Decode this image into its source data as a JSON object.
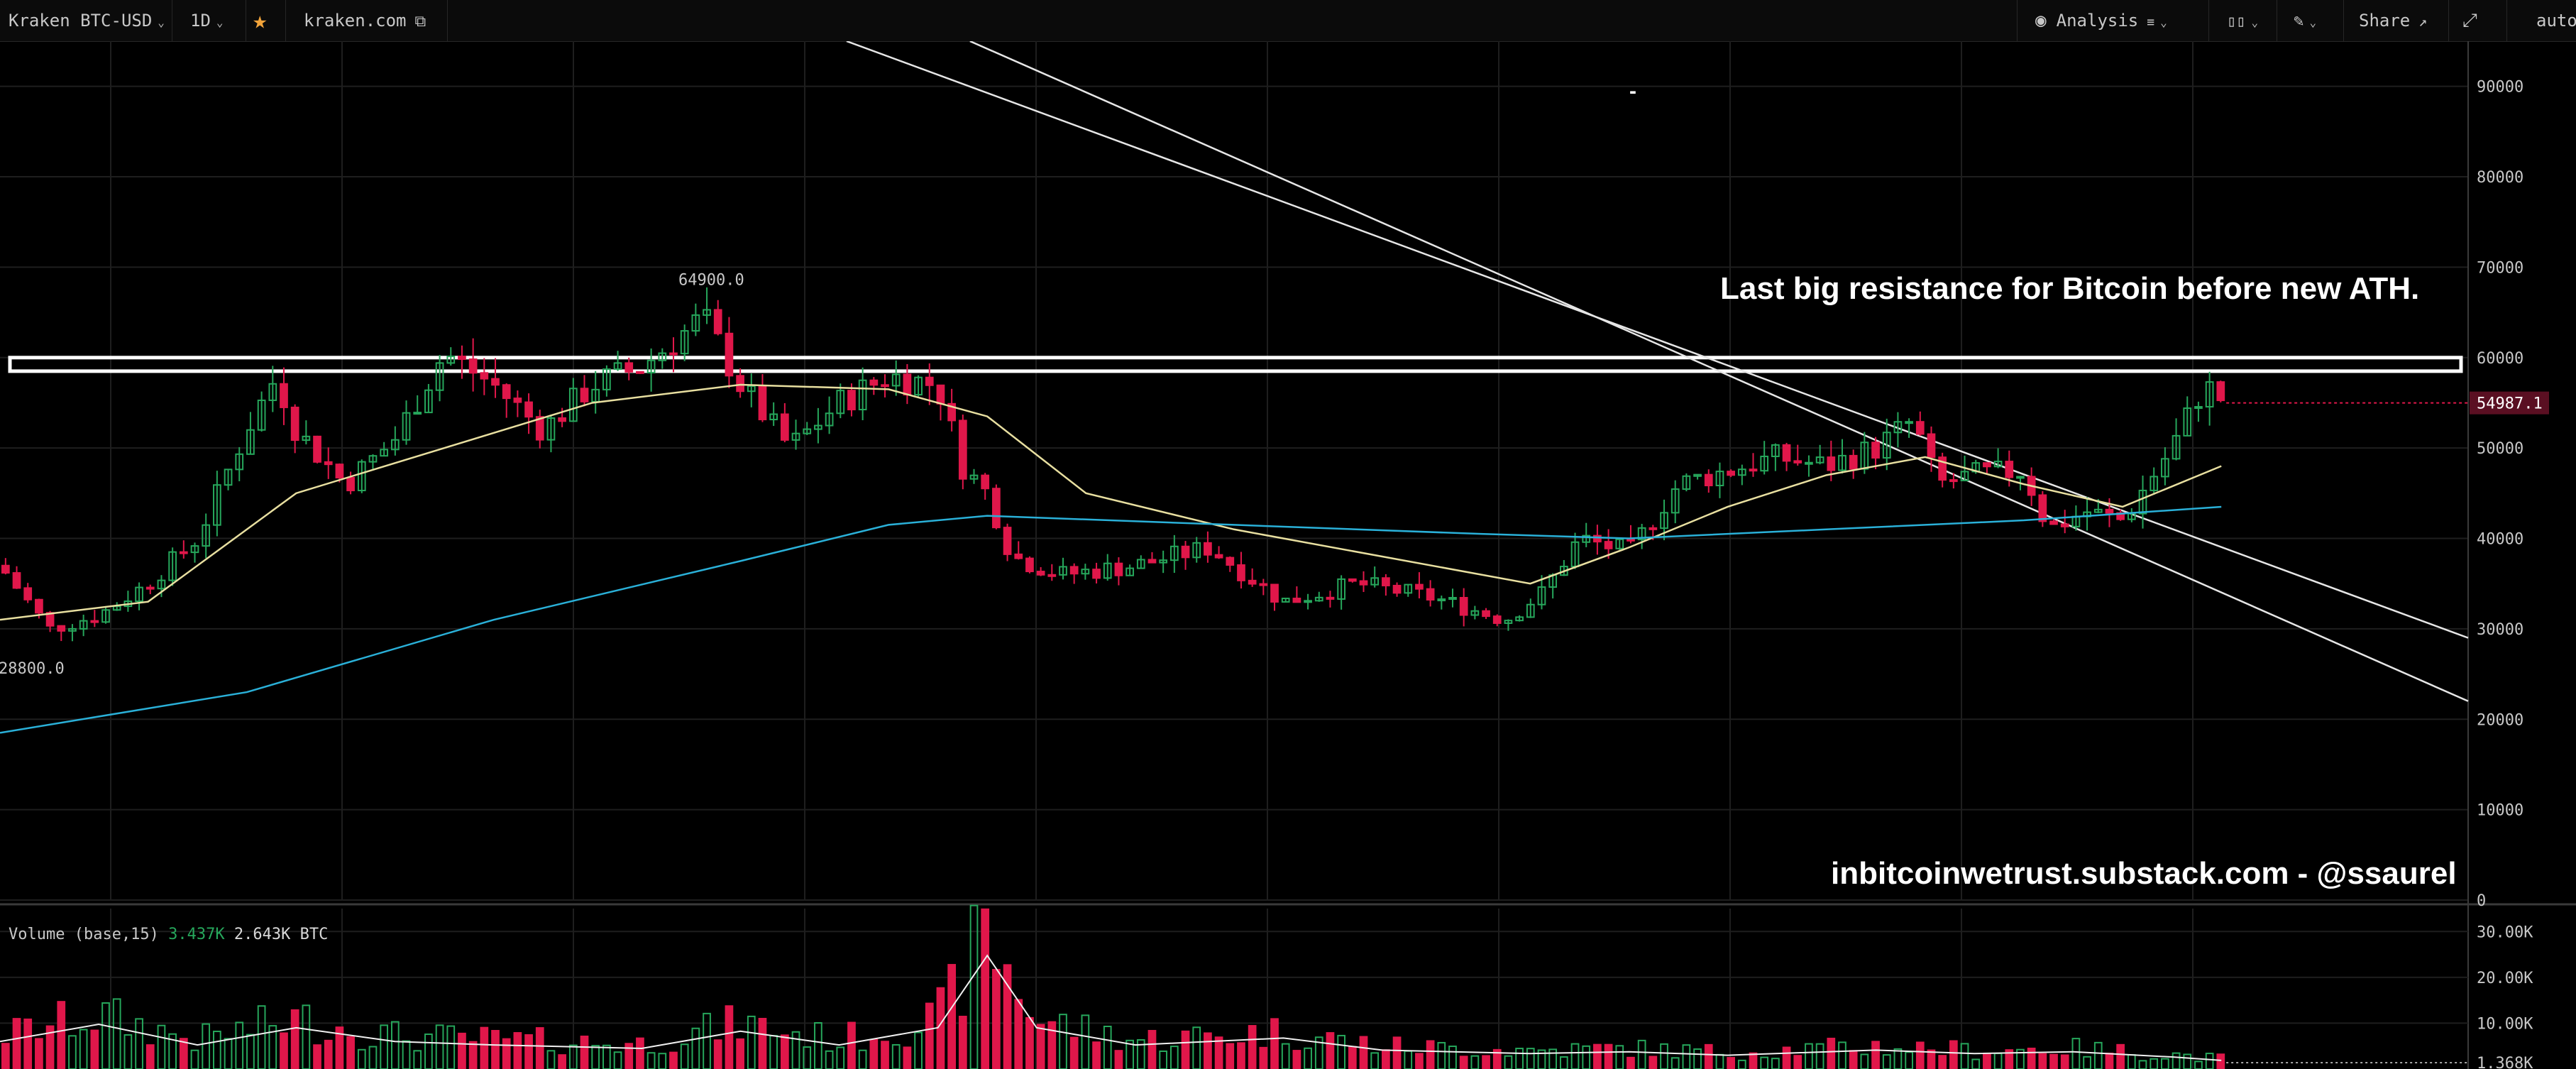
{
  "toolbar": {
    "symbol": "Kraken BTC-USD",
    "interval": "1D",
    "source": "kraken.com",
    "analysis": "Analysis",
    "share": "Share",
    "scale": "auto"
  },
  "annotations": {
    "title": "Last big resistance for Bitcoin before new ATH.",
    "credit": "inbitcoinwetrust.substack.com - @ssaurel",
    "dash": "-",
    "high_label": "64900.0",
    "low_label": "28800.0",
    "last_price_label": "54987.1"
  },
  "volume_legend": {
    "name": "Volume (base,15)",
    "value_green": "3.437K",
    "value_white": "2.643K BTC"
  },
  "colors": {
    "up": "#26a65b",
    "down": "#e0174a",
    "ma_fast": "#e8dfa0",
    "ma_slow": "#2ab0d8",
    "grid": "#1e1e1e",
    "text": "#c8c8c8"
  },
  "chart_data": {
    "type": "candlestick",
    "price_axis": {
      "min": 0,
      "max": 95000,
      "ticks": [
        "90000",
        "80000",
        "70000",
        "60000",
        "50000",
        "40000",
        "30000",
        "20000",
        "10000",
        "0"
      ]
    },
    "volume_axis": {
      "min": 0,
      "max": 35000,
      "ticks": [
        "30.00K",
        "20.00K",
        "10.00K"
      ],
      "last_label": "1.368K"
    },
    "resistance_zone": [
      58500,
      60000
    ],
    "trendlines": [
      {
        "from": [
          0.343,
          95000
        ],
        "to": [
          1.0,
          29000
        ]
      },
      {
        "from": [
          0.393,
          95000
        ],
        "to": [
          1.0,
          22000
        ]
      }
    ],
    "price_path": [
      [
        0.0,
        37000
      ],
      [
        0.02,
        30000
      ],
      [
        0.04,
        31500
      ],
      [
        0.06,
        35000
      ],
      [
        0.08,
        40000
      ],
      [
        0.1,
        52000
      ],
      [
        0.112,
        58000
      ],
      [
        0.12,
        52000
      ],
      [
        0.14,
        46000
      ],
      [
        0.16,
        51000
      ],
      [
        0.18,
        60500
      ],
      [
        0.2,
        57000
      ],
      [
        0.22,
        52000
      ],
      [
        0.24,
        57000
      ],
      [
        0.26,
        59000
      ],
      [
        0.285,
        64500
      ],
      [
        0.3,
        57000
      ],
      [
        0.32,
        50000
      ],
      [
        0.34,
        55000
      ],
      [
        0.36,
        58000
      ],
      [
        0.38,
        57000
      ],
      [
        0.39,
        48000
      ],
      [
        0.4,
        45000
      ],
      [
        0.41,
        38000
      ],
      [
        0.43,
        36000
      ],
      [
        0.46,
        37000
      ],
      [
        0.49,
        39000
      ],
      [
        0.52,
        33000
      ],
      [
        0.55,
        35000
      ],
      [
        0.58,
        33500
      ],
      [
        0.61,
        31000
      ],
      [
        0.625,
        34000
      ],
      [
        0.64,
        40000
      ],
      [
        0.66,
        38500
      ],
      [
        0.68,
        46000
      ],
      [
        0.7,
        47500
      ],
      [
        0.72,
        49000
      ],
      [
        0.74,
        48000
      ],
      [
        0.76,
        50000
      ],
      [
        0.775,
        53000
      ],
      [
        0.785,
        46000
      ],
      [
        0.8,
        47000
      ],
      [
        0.82,
        47500
      ],
      [
        0.83,
        41000
      ],
      [
        0.845,
        43000
      ],
      [
        0.86,
        42000
      ],
      [
        0.87,
        46000
      ],
      [
        0.88,
        50000
      ],
      [
        0.893,
        57000
      ],
      [
        0.902,
        55000
      ]
    ],
    "ma_fast": [
      [
        0.0,
        31000
      ],
      [
        0.06,
        33000
      ],
      [
        0.12,
        45000
      ],
      [
        0.18,
        50000
      ],
      [
        0.24,
        55000
      ],
      [
        0.3,
        57000
      ],
      [
        0.36,
        56500
      ],
      [
        0.4,
        53500
      ],
      [
        0.44,
        45000
      ],
      [
        0.5,
        41000
      ],
      [
        0.56,
        38000
      ],
      [
        0.62,
        35000
      ],
      [
        0.66,
        39000
      ],
      [
        0.7,
        43500
      ],
      [
        0.74,
        47000
      ],
      [
        0.78,
        49000
      ],
      [
        0.82,
        46000
      ],
      [
        0.86,
        43500
      ],
      [
        0.9,
        48000
      ]
    ],
    "ma_slow": [
      [
        0.0,
        18500
      ],
      [
        0.1,
        23000
      ],
      [
        0.2,
        31000
      ],
      [
        0.3,
        37500
      ],
      [
        0.36,
        41500
      ],
      [
        0.4,
        42500
      ],
      [
        0.5,
        41500
      ],
      [
        0.6,
        40500
      ],
      [
        0.66,
        40000
      ],
      [
        0.74,
        41000
      ],
      [
        0.82,
        42000
      ],
      [
        0.9,
        43500
      ]
    ],
    "volume_path": [
      [
        0.0,
        8000
      ],
      [
        0.04,
        13000
      ],
      [
        0.08,
        7000
      ],
      [
        0.12,
        12000
      ],
      [
        0.16,
        8000
      ],
      [
        0.2,
        7000
      ],
      [
        0.26,
        6000
      ],
      [
        0.3,
        11000
      ],
      [
        0.34,
        7000
      ],
      [
        0.38,
        12000
      ],
      [
        0.4,
        33000
      ],
      [
        0.42,
        12000
      ],
      [
        0.46,
        7000
      ],
      [
        0.52,
        9000
      ],
      [
        0.56,
        5500
      ],
      [
        0.62,
        4500
      ],
      [
        0.66,
        5000
      ],
      [
        0.7,
        4000
      ],
      [
        0.76,
        5500
      ],
      [
        0.8,
        4500
      ],
      [
        0.84,
        5000
      ],
      [
        0.88,
        3500
      ],
      [
        0.9,
        2500
      ]
    ],
    "candle_count": 200,
    "last_price": 54987.1
  }
}
